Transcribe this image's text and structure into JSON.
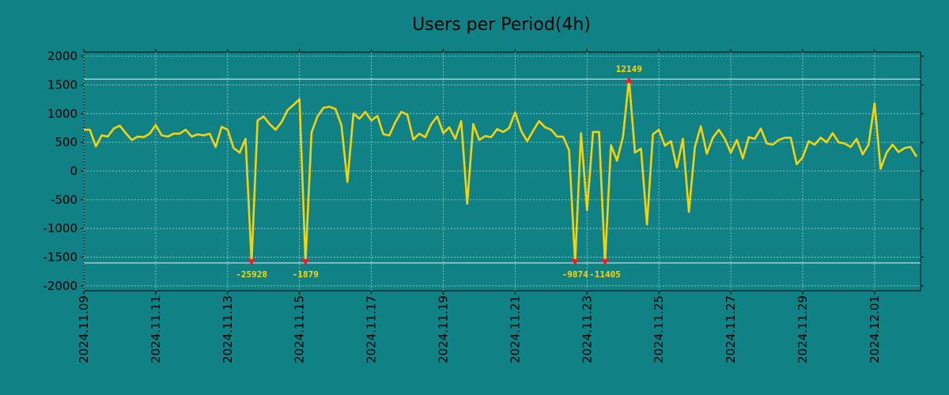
{
  "chart_data": {
    "type": "line",
    "title": "Users per Period(4h)",
    "xlabel": "",
    "ylabel": "",
    "ylim": [
      -2100,
      2100
    ],
    "xlim": [
      0,
      23.33
    ],
    "y_ticks": [
      2000,
      1500,
      1000,
      500,
      0,
      -500,
      -1000,
      -1500,
      -2000
    ],
    "x_ticks": [
      {
        "label": "2024.11.09",
        "day": 0
      },
      {
        "label": "2024.11.11",
        "day": 2
      },
      {
        "label": "2024.11.13",
        "day": 4
      },
      {
        "label": "2024.11.15",
        "day": 6
      },
      {
        "label": "2024.11.17",
        "day": 8
      },
      {
        "label": "2024.11.19",
        "day": 10
      },
      {
        "label": "2024.11.21",
        "day": 12
      },
      {
        "label": "2024.11.23",
        "day": 14
      },
      {
        "label": "2024.11.25",
        "day": 16
      },
      {
        "label": "2024.11.27",
        "day": 18
      },
      {
        "label": "2024.11.29",
        "day": 20
      },
      {
        "label": "2024.12.01",
        "day": 22
      }
    ],
    "reference_lines": [
      1600,
      -1600
    ],
    "series": [
      {
        "name": "Users",
        "color": "#f5d30a",
        "x_start_day": 0,
        "x_step_day": 0.16667,
        "values": [
          720,
          720,
          430,
          620,
          600,
          740,
          790,
          660,
          540,
          600,
          590,
          650,
          800,
          620,
          600,
          650,
          650,
          720,
          600,
          640,
          620,
          650,
          420,
          770,
          720,
          400,
          320,
          560,
          -1590,
          880,
          950,
          820,
          720,
          850,
          1060,
          1150,
          1250,
          -1590,
          670,
          950,
          1100,
          1120,
          1080,
          800,
          -190,
          1000,
          910,
          1030,
          880,
          960,
          640,
          620,
          850,
          1030,
          980,
          550,
          650,
          590,
          820,
          950,
          660,
          760,
          560,
          870,
          -570,
          820,
          540,
          610,
          590,
          730,
          680,
          750,
          1020,
          700,
          520,
          700,
          870,
          760,
          720,
          600,
          600,
          360,
          -1590,
          660,
          -680,
          680,
          680,
          -1590,
          450,
          180,
          600,
          1600,
          320,
          390,
          -930,
          640,
          720,
          440,
          520,
          60,
          560,
          -710,
          420,
          780,
          300,
          580,
          720,
          560,
          320,
          540,
          220,
          590,
          560,
          740,
          480,
          460,
          540,
          580,
          580,
          120,
          240,
          520,
          460,
          580,
          500,
          660,
          500,
          480,
          420,
          560,
          290,
          460,
          1180,
          40,
          320,
          460,
          330,
          400,
          420,
          250
        ]
      }
    ],
    "annotations": [
      {
        "label": "-25928",
        "index": 28,
        "value": -1600,
        "position": "below"
      },
      {
        "label": "-1879",
        "index": 37,
        "value": -1600,
        "position": "below"
      },
      {
        "label": "-9874",
        "index": 82,
        "value": -1600,
        "position": "below"
      },
      {
        "label": "-11405",
        "index": 87,
        "value": -1600,
        "position": "below"
      },
      {
        "label": "12149",
        "index": 91,
        "value": 1600,
        "position": "above"
      }
    ],
    "grid": true,
    "legend": "none",
    "colors": {
      "background": "#108286",
      "plot_background": "#108286",
      "line": "#f5d30a",
      "marker": "#e8202a",
      "annotation": "#ffd700",
      "grid": "#bfe6e4",
      "axis": "#000000"
    }
  }
}
